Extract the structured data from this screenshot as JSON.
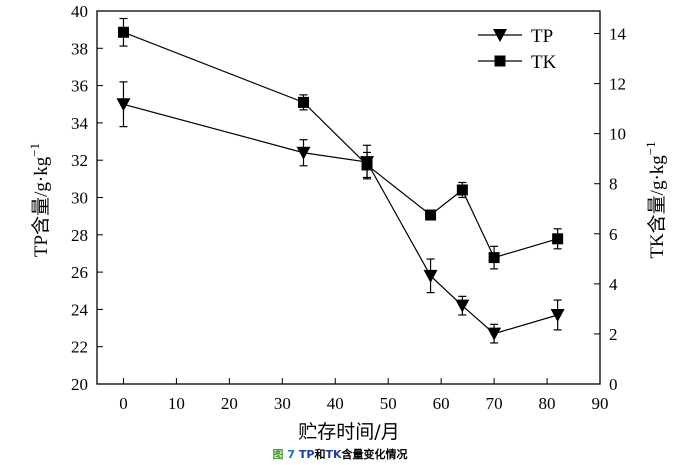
{
  "chart_data": {
    "type": "line",
    "title": "",
    "xlabel": "贮存时间/月",
    "ylabel": "TP含量/g·kg-1",
    "ylabel_base": "TP含量/g·kg",
    "y2label": "TK含量/g·kg-1",
    "y2label_base": "TK含量/g·kg",
    "label_exponent": "−1",
    "xlim": [
      -5,
      90
    ],
    "ylim": [
      20,
      40
    ],
    "y2lim": [
      0,
      14.9
    ],
    "xticks": [
      0,
      10,
      20,
      30,
      40,
      50,
      60,
      70,
      80,
      90
    ],
    "yticks": [
      20,
      22,
      24,
      26,
      28,
      30,
      32,
      34,
      36,
      38,
      40
    ],
    "y2ticks": [
      0,
      2,
      4,
      6,
      8,
      10,
      12,
      14
    ],
    "legend_position": "top-right",
    "grid": false,
    "x": [
      0,
      34,
      46,
      58,
      64,
      70,
      82
    ],
    "series": [
      {
        "name": "TP",
        "axis": "left",
        "marker": "triangle-down",
        "values": [
          35.0,
          32.4,
          31.9,
          25.8,
          24.2,
          22.7,
          23.7
        ],
        "errors": [
          1.2,
          0.7,
          0.9,
          0.9,
          0.5,
          0.5,
          0.8
        ]
      },
      {
        "name": "TK",
        "axis": "right",
        "marker": "square",
        "values": [
          14.05,
          11.25,
          8.75,
          6.75,
          7.75,
          5.05,
          5.8
        ],
        "errors": [
          0.55,
          0.3,
          0.5,
          0.1,
          0.3,
          0.45,
          0.4
        ]
      }
    ]
  },
  "caption": {
    "fig": "图",
    "num": "7",
    "tp": "TP",
    "and": "和",
    "tk": "TK",
    "rest": "含量变化情况"
  }
}
